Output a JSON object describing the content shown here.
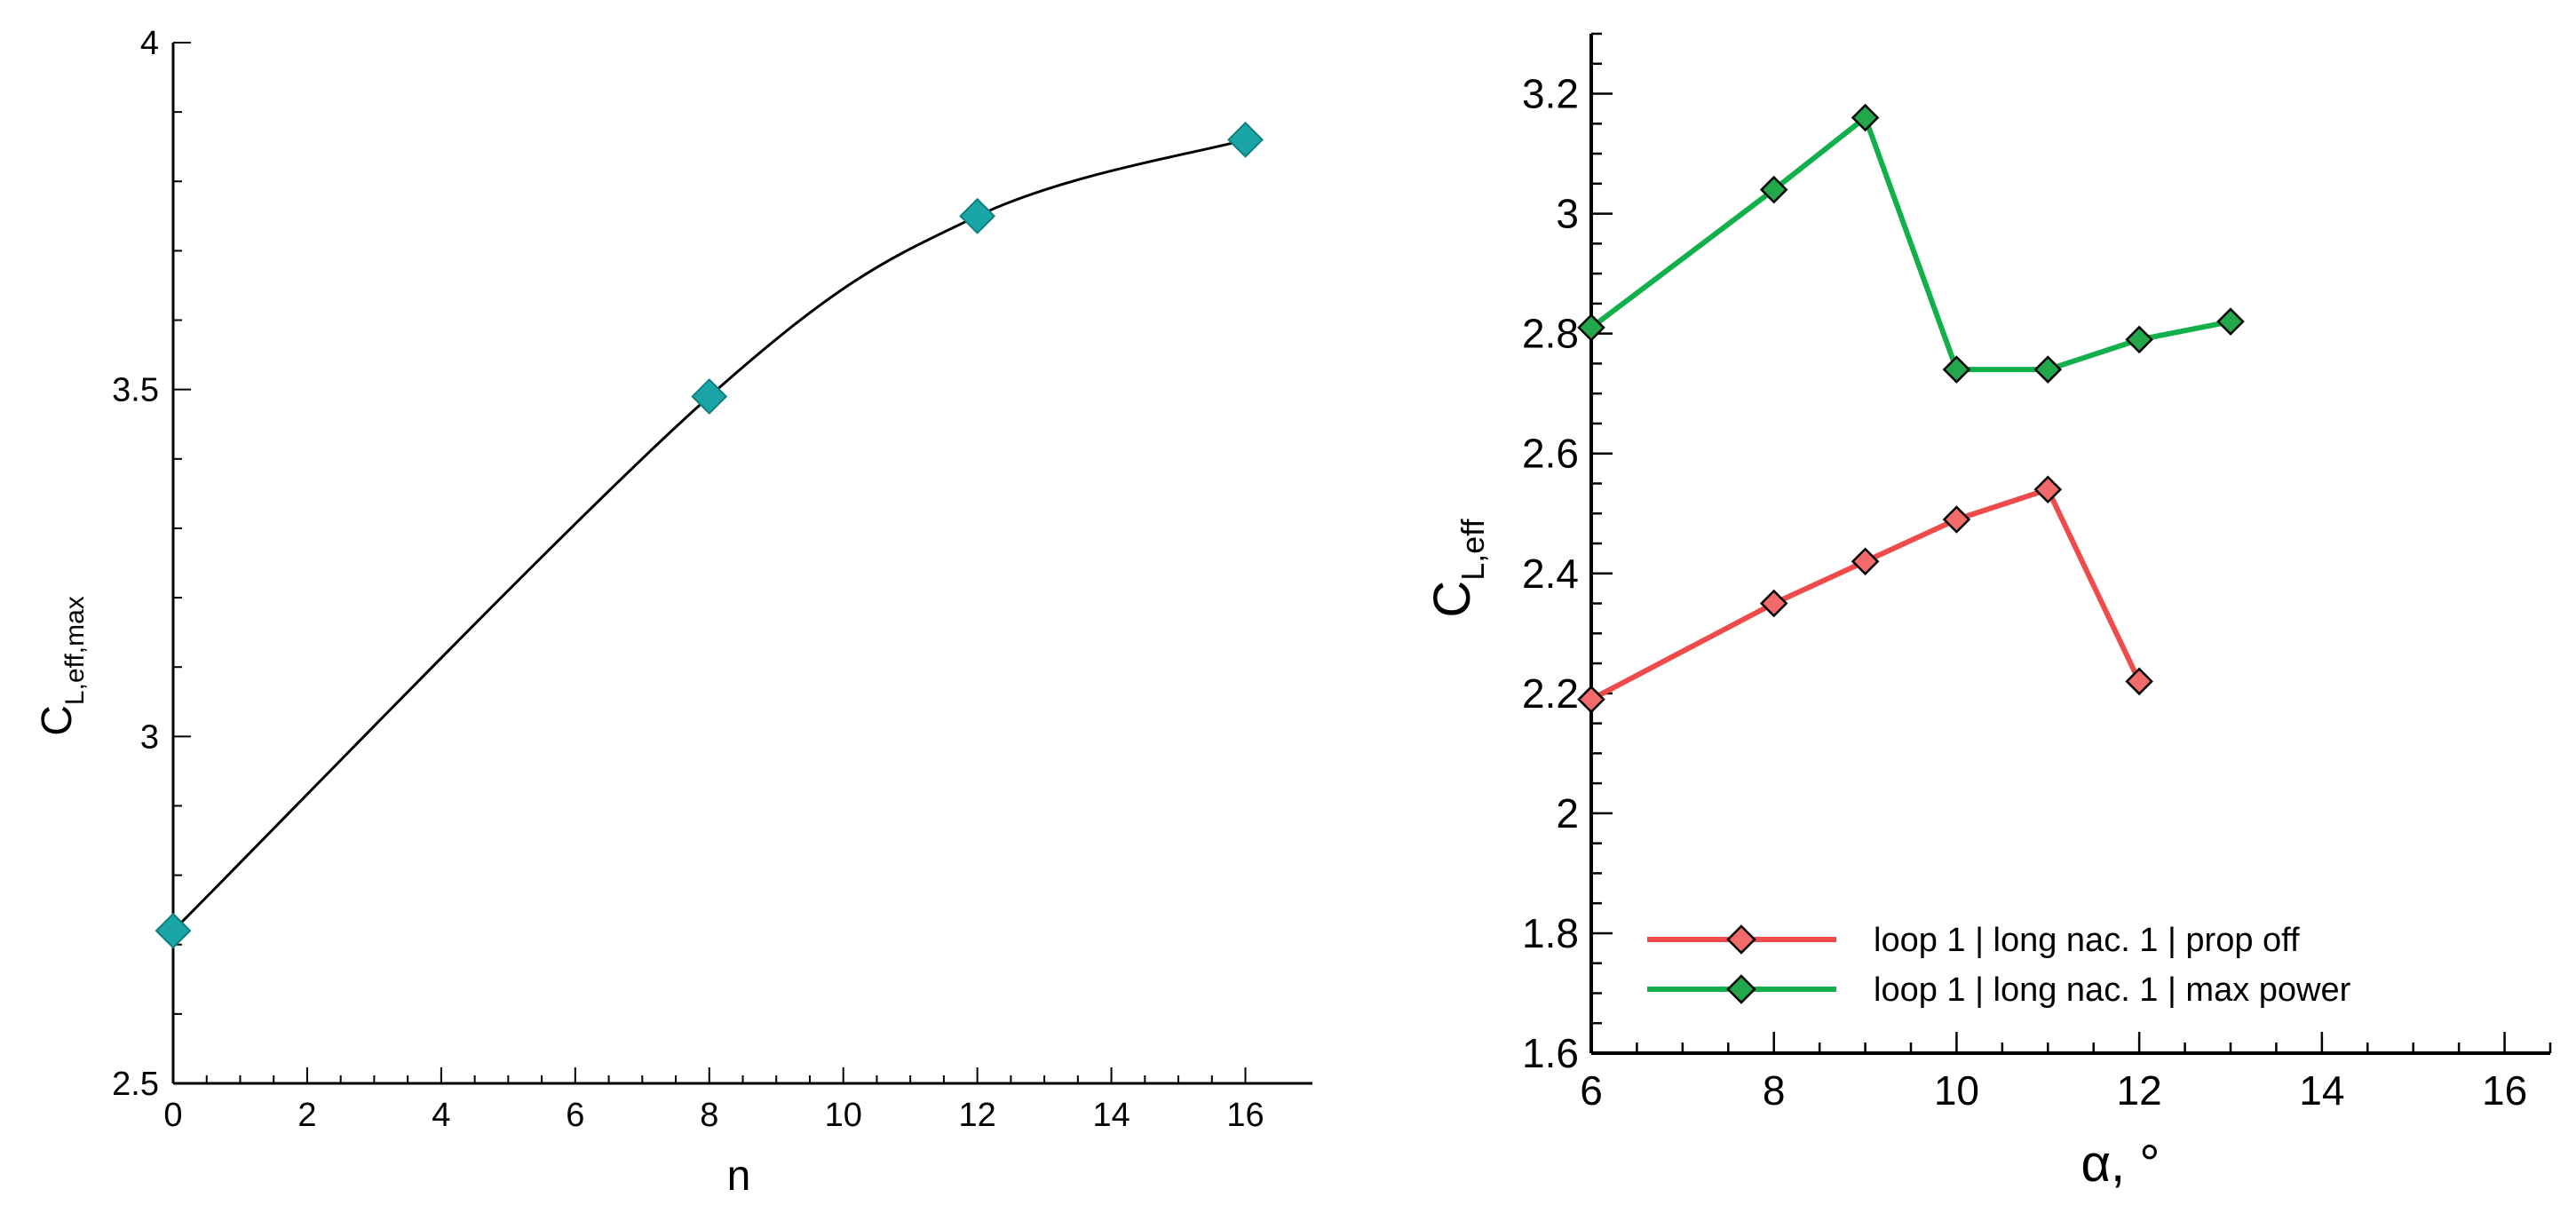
{
  "chart_data": [
    {
      "type": "line",
      "title": "",
      "xlabel": "n",
      "ylabel": "C",
      "ylabel_sub": "L,eff,max",
      "xlim": [
        0,
        17
      ],
      "ylim": [
        2.5,
        4
      ],
      "xticks": [
        "0",
        "2",
        "4",
        "6",
        "8",
        "10",
        "12",
        "14",
        "16"
      ],
      "yticks": [
        "2.5",
        "3",
        "3.5",
        "4"
      ],
      "grid": false,
      "series": [
        {
          "color": "#1aa6a6",
          "marker": "diamond",
          "line_color": "#000000",
          "smooth": true,
          "x": [
            0,
            8,
            12,
            16
          ],
          "y": [
            2.72,
            3.49,
            3.75,
            3.86
          ]
        }
      ]
    },
    {
      "type": "line",
      "title": "",
      "xlabel": "α, °",
      "ylabel": "C",
      "ylabel_sub": "L,eff",
      "xlim": [
        6,
        16.5
      ],
      "ylim": [
        1.6,
        3.3
      ],
      "xticks": [
        "6",
        "8",
        "10",
        "12",
        "14",
        "16"
      ],
      "yticks": [
        "1.6",
        "1.8",
        "2",
        "2.2",
        "2.4",
        "2.6",
        "2.8",
        "3",
        "3.2"
      ],
      "grid": false,
      "legend_position": "bottom",
      "series": [
        {
          "name": "loop 1 | long nac. 1 | prop off",
          "color": "#ef4b4b",
          "marker_fill": "#f26a6a",
          "marker": "diamond",
          "x": [
            6,
            8,
            9,
            10,
            11,
            12
          ],
          "y": [
            2.19,
            2.35,
            2.42,
            2.49,
            2.54,
            2.22
          ]
        },
        {
          "name": "loop 1 | long nac. 1 | max power",
          "color": "#11b04a",
          "marker_fill": "#22a84a",
          "marker": "diamond",
          "x": [
            6,
            8,
            9,
            10,
            11,
            12,
            13
          ],
          "y": [
            2.81,
            3.04,
            3.16,
            2.74,
            2.74,
            2.79,
            2.82
          ]
        }
      ]
    }
  ]
}
